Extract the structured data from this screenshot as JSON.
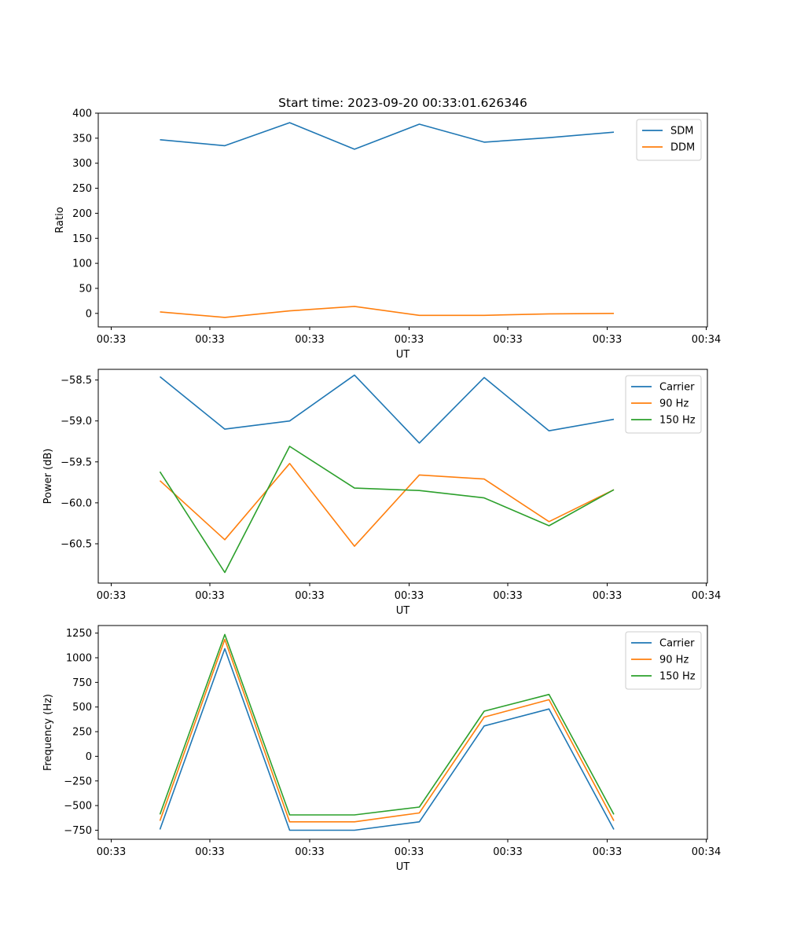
{
  "title": "Start time: 2023-09-20 00:33:01.626346",
  "chart_data": [
    {
      "type": "line",
      "title": "Start time: 2023-09-20 00:33:01.626346",
      "xlabel": "UT",
      "ylabel": "Ratio",
      "x_ticks": [
        "00:33",
        "00:33",
        "00:33",
        "00:33",
        "00:33",
        "00:33",
        "00:33",
        "00:34"
      ],
      "ylim": [
        -27,
        400
      ],
      "y_ticks": [
        0,
        50,
        100,
        150,
        200,
        250,
        300,
        350,
        400
      ],
      "legend_position": "top-right",
      "series": [
        {
          "name": "SDM",
          "color": "#1f77b4",
          "values": [
            347,
            335,
            381,
            328,
            378,
            342,
            351,
            362
          ]
        },
        {
          "name": "DDM",
          "color": "#ff7f0e",
          "values": [
            3,
            -8,
            5,
            14,
            -4,
            -4,
            -1,
            0
          ]
        }
      ]
    },
    {
      "type": "line",
      "title": "",
      "xlabel": "UT",
      "ylabel": "Power (dB)",
      "x_ticks": [
        "00:33",
        "00:33",
        "00:33",
        "00:33",
        "00:33",
        "00:33",
        "00:33",
        "00:34"
      ],
      "ylim": [
        -60.98,
        -58.37
      ],
      "y_ticks": [
        -58.5,
        -59.0,
        -59.5,
        -60.0,
        -60.5
      ],
      "y_tick_labels": [
        "−58.5",
        "−59.0",
        "−59.5",
        "−60.0",
        "−60.5"
      ],
      "legend_position": "top-right",
      "series": [
        {
          "name": "Carrier",
          "color": "#1f77b4",
          "values": [
            -58.46,
            -59.1,
            -59.0,
            -58.44,
            -59.27,
            -58.47,
            -59.12,
            -58.98
          ]
        },
        {
          "name": "90 Hz",
          "color": "#ff7f0e",
          "values": [
            -59.73,
            -60.45,
            -59.52,
            -60.53,
            -59.66,
            -59.71,
            -60.23,
            -59.84
          ]
        },
        {
          "name": "150 Hz",
          "color": "#2ca02c",
          "values": [
            -59.62,
            -60.85,
            -59.31,
            -59.82,
            -59.85,
            -59.94,
            -60.28,
            -59.84
          ]
        }
      ]
    },
    {
      "type": "line",
      "title": "",
      "xlabel": "UT",
      "ylabel": "Frequency (Hz)",
      "x_ticks": [
        "00:33",
        "00:33",
        "00:33",
        "00:33",
        "00:33",
        "00:33",
        "00:33",
        "00:34"
      ],
      "ylim": [
        -842,
        1327
      ],
      "y_ticks": [
        1250,
        1000,
        750,
        500,
        250,
        0,
        -250,
        -500,
        -750
      ],
      "y_tick_labels": [
        "1250",
        "1000",
        "750",
        "500",
        "250",
        "0",
        "−250",
        "−500",
        "−750"
      ],
      "legend_position": "top-right",
      "series": [
        {
          "name": "Carrier",
          "color": "#1f77b4",
          "values": [
            -742,
            1092,
            -750,
            -750,
            -665,
            308,
            480,
            -742
          ]
        },
        {
          "name": "90 Hz",
          "color": "#ff7f0e",
          "values": [
            -655,
            1186,
            -665,
            -665,
            -575,
            398,
            574,
            -655
          ]
        },
        {
          "name": "150 Hz",
          "color": "#2ca02c",
          "values": [
            -590,
            1236,
            -595,
            -595,
            -515,
            458,
            628,
            -590
          ]
        }
      ]
    }
  ]
}
